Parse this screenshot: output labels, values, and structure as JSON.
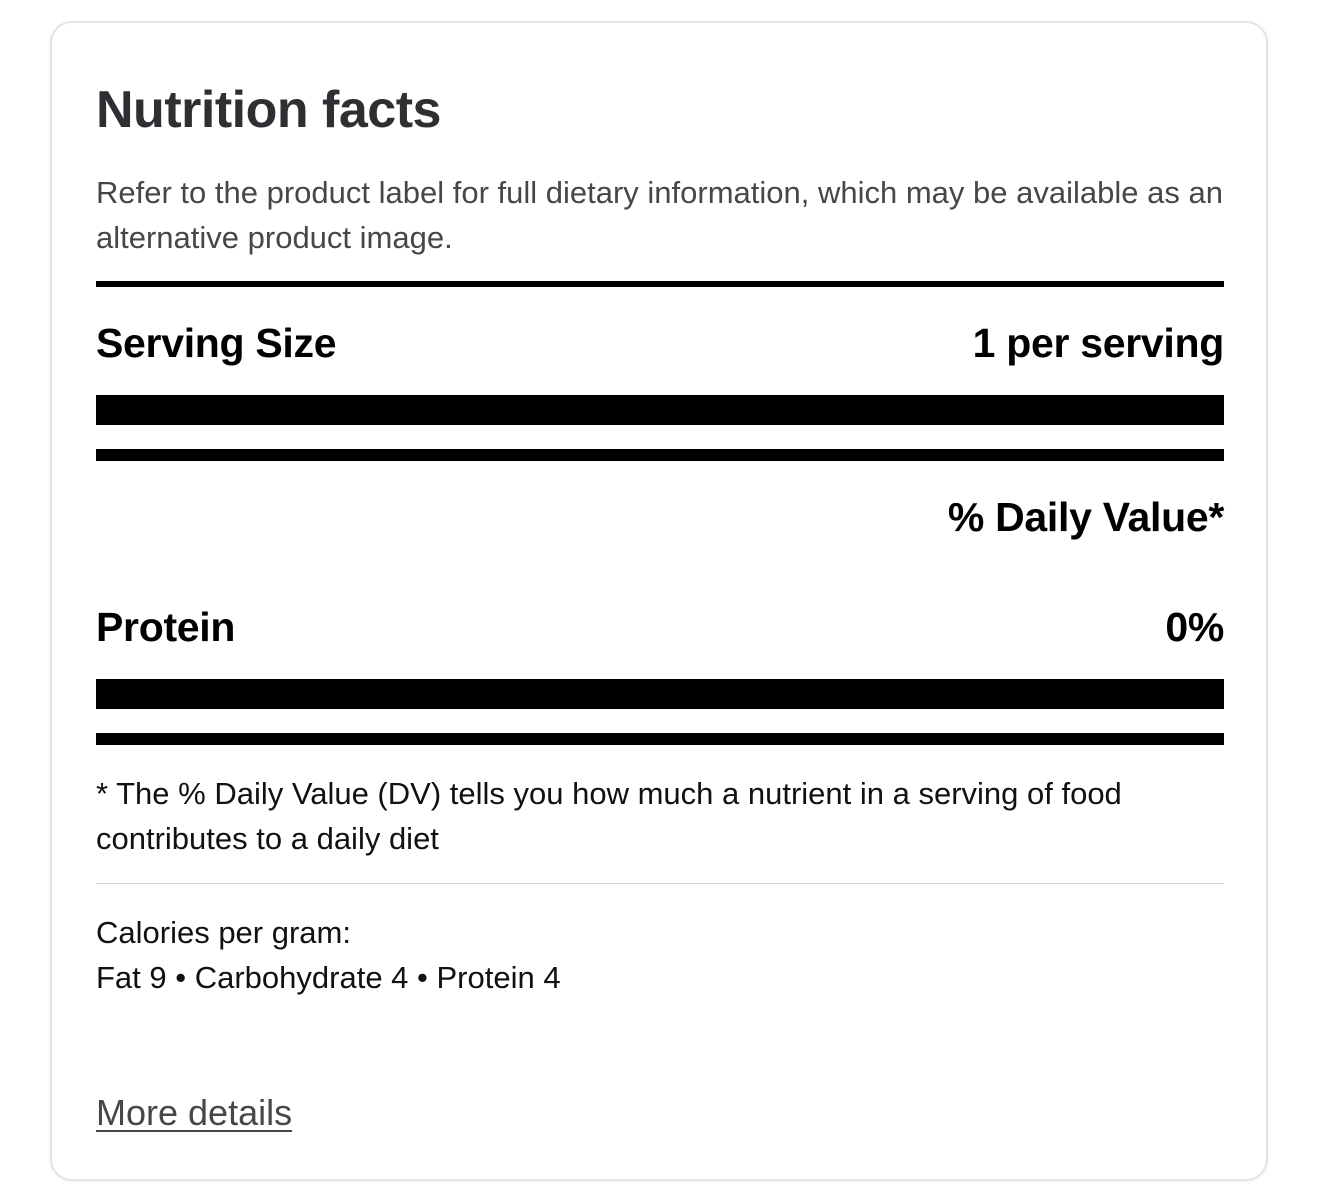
{
  "panel": {
    "title": "Nutrition facts",
    "subtitle": "Refer to the product label for full dietary information, which may be available as an alternative product image."
  },
  "serving": {
    "label": "Serving Size",
    "value": "1 per serving"
  },
  "daily_value_header": "% Daily Value*",
  "nutrients": [
    {
      "label": "Protein",
      "value": "0%"
    }
  ],
  "footnote": "* The % Daily Value (DV) tells you how much a nutrient in a serving of food contributes to a daily diet",
  "calories_per_gram": {
    "title": "Calories per gram:",
    "values": "Fat 9 • Carbohydrate 4 • Protein 4"
  },
  "links": {
    "more_details": "More details"
  }
}
